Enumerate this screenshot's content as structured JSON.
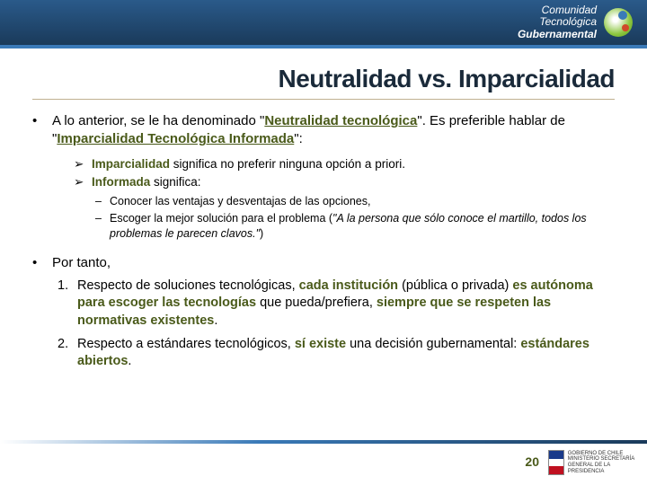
{
  "header": {
    "brand_line1": "Comunidad",
    "brand_line2": "Tecnológica",
    "brand_line3": "Gubernamental"
  },
  "title": "Neutralidad vs. Imparcialidad",
  "main_bullet": {
    "pre": "A lo anterior, se le ha denominado \"",
    "term1": "Neutralidad tecnológica",
    "mid": "\". Es preferible hablar de \"",
    "term2": "Imparcialidad Tecnológica Informada",
    "post": "\":"
  },
  "sub_arrows": [
    {
      "bold": "Imparcialidad",
      "rest": " significa no preferir ninguna opción a priori."
    },
    {
      "bold": "Informada",
      "rest": " significa:"
    }
  ],
  "sub_dashes": [
    "Conocer las ventajas y desventajas de las opciones,",
    "Escoger la mejor solución para el problema (\"A la persona que sólo conoce el martillo, todos los problemas le parecen clavos.\")"
  ],
  "por_tanto_label": "Por tanto,",
  "numbered": [
    {
      "parts": [
        {
          "t": "Respecto de soluciones tecnológicas, "
        },
        {
          "t": "cada institución",
          "b": true
        },
        {
          "t": " (pública o privada) "
        },
        {
          "t": "es autónoma para escoger las tecnologías",
          "b": true
        },
        {
          "t": " que pueda/prefiera, "
        },
        {
          "t": "siempre que se respeten las normativas existentes",
          "b": true
        },
        {
          "t": "."
        }
      ]
    },
    {
      "parts": [
        {
          "t": "Respecto a estándares tecnológicos, "
        },
        {
          "t": "sí existe",
          "b": true
        },
        {
          "t": " una decisión gubernamental: "
        },
        {
          "t": "estándares abiertos",
          "b": true
        },
        {
          "t": "."
        }
      ]
    }
  ],
  "page_number": "20",
  "footer_org": "GOBIERNO DE CHILE\nMINISTERIO SECRETARÍA\nGENERAL DE LA PRESIDENCIA"
}
